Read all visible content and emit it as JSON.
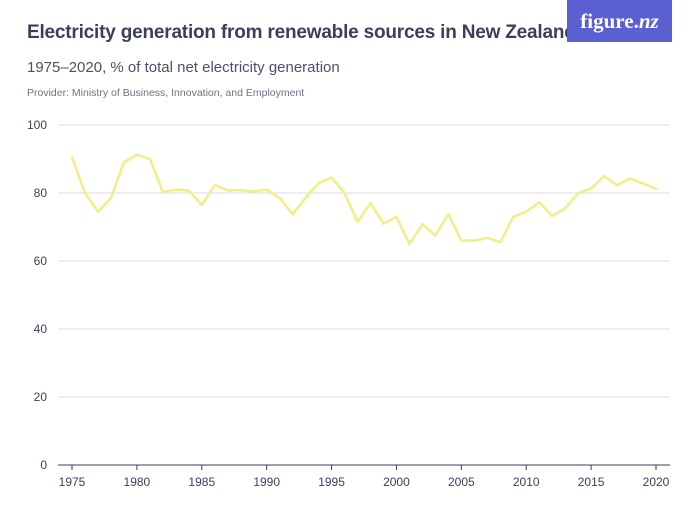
{
  "header": {
    "title": "Electricity generation from renewable sources in New Zealand",
    "subtitle": "1975–2020, % of total net electricity generation",
    "provider": "Provider: Ministry of Business, Innovation, and Employment"
  },
  "logo": {
    "main": "figure.",
    "accent": "nz"
  },
  "colors": {
    "line": "#f1ef8a",
    "grid": "#dcdce0",
    "axis": "#3a3f5c",
    "logo_bg": "#5a5fd1"
  },
  "chart_data": {
    "type": "line",
    "xlabel": "",
    "ylabel": "",
    "xlim": [
      1975,
      2020
    ],
    "ylim": [
      0,
      100
    ],
    "x_ticks": [
      1975,
      1980,
      1985,
      1990,
      1995,
      2000,
      2005,
      2010,
      2015,
      2020
    ],
    "y_ticks": [
      0,
      20,
      40,
      60,
      80,
      100
    ],
    "grid": true,
    "series": [
      {
        "x": [
          1975,
          1976,
          1977,
          1978,
          1979,
          1980,
          1981,
          1982,
          1983,
          1984,
          1985,
          1986,
          1987,
          1988,
          1989,
          1990,
          1991,
          1992,
          1993,
          1994,
          1995,
          1996,
          1997,
          1998,
          1999,
          2000,
          2001,
          2002,
          2003,
          2004,
          2005,
          2006,
          2007,
          2008,
          2009,
          2010,
          2011,
          2012,
          2013,
          2014,
          2015,
          2016,
          2017,
          2018,
          2019,
          2020
        ],
        "values": [
          90.5,
          80.0,
          74.5,
          78.5,
          89.0,
          91.3,
          90.0,
          80.3,
          81.0,
          80.7,
          76.5,
          82.3,
          80.8,
          80.8,
          80.5,
          81.0,
          78.5,
          73.8,
          78.5,
          83.0,
          84.5,
          80.0,
          71.5,
          77.0,
          71.0,
          73.0,
          65.0,
          70.8,
          67.5,
          73.8,
          66.0,
          66.0,
          66.8,
          65.5,
          73.0,
          74.5,
          77.3,
          73.2,
          75.5,
          80.0,
          81.3,
          85.0,
          82.3,
          84.3,
          82.8,
          81.2
        ]
      }
    ]
  }
}
